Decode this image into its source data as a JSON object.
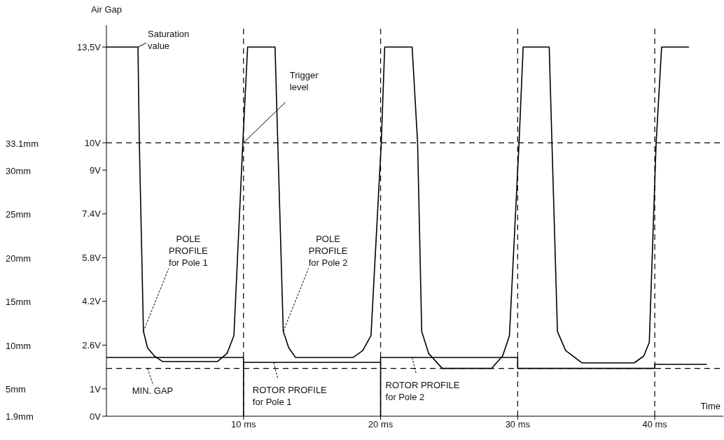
{
  "chart_data": {
    "type": "line",
    "xlabel": "Time",
    "ylabel": "Air Gap",
    "xlim": [
      0,
      45
    ],
    "xticks": [
      {
        "value": 10,
        "label": "10 ms"
      },
      {
        "value": 20,
        "label": "20 ms"
      },
      {
        "value": 30,
        "label": "30 ms"
      },
      {
        "value": 40,
        "label": "40 ms"
      }
    ],
    "ylim": [
      0,
      14.3
    ],
    "yticks": [
      {
        "value": 0,
        "label": "0V"
      },
      {
        "value": 1,
        "label": "1V"
      },
      {
        "value": 2.6,
        "label": "2.6V"
      },
      {
        "value": 4.2,
        "label": "4.2V"
      },
      {
        "value": 5.8,
        "label": "5.8V"
      },
      {
        "value": 7.4,
        "label": "7.4V"
      },
      {
        "value": 9,
        "label": "9V"
      },
      {
        "value": 10,
        "label": "10V"
      },
      {
        "value": 13.5,
        "label": "13,5V"
      }
    ],
    "y2lim": [
      1.9,
      46.69
    ],
    "y2ticks": [
      {
        "value": 1.9,
        "label": "1.9mm"
      },
      {
        "value": 5,
        "label": "5mm"
      },
      {
        "value": 10,
        "label": "10mm"
      },
      {
        "value": 15,
        "label": "15mm"
      },
      {
        "value": 20,
        "label": "20mm"
      },
      {
        "value": 25,
        "label": "25mm"
      },
      {
        "value": 30,
        "label": "30mm"
      },
      {
        "value": 33.1,
        "label": "33.1mm"
      }
    ],
    "grid": false,
    "marker": "none",
    "line_style": "solid",
    "series": [
      {
        "color": "#000000",
        "x": [
          0,
          2.3,
          2.4,
          2.7,
          3.0,
          3.5,
          4.1,
          8.1,
          8.8,
          9.3,
          9.95,
          10.3,
          12.3,
          12.5,
          12.9,
          13.3,
          13.8,
          18.0,
          18.7,
          19.3,
          20.05,
          20.3,
          22.3,
          22.7,
          23.0,
          23.5,
          24.5,
          28.1,
          28.9,
          29.4,
          30.1,
          30.4,
          32.3,
          32.5,
          32.9,
          33.5,
          34.7,
          38.5,
          39.2,
          39.6,
          40.1,
          40.5,
          42.5
        ],
        "values": [
          13.5,
          13.5,
          10,
          3.1,
          2.5,
          2.2,
          2.0,
          2.0,
          2.3,
          2.95,
          10,
          13.5,
          13.5,
          10,
          3.1,
          2.5,
          2.15,
          2.15,
          2.4,
          2.95,
          10,
          13.5,
          13.5,
          10,
          3.1,
          2.3,
          1.75,
          1.75,
          2.2,
          2.95,
          10,
          13.5,
          13.5,
          10,
          3.1,
          2.4,
          1.95,
          1.95,
          2.2,
          2.7,
          10,
          13.5,
          13.5
        ]
      },
      {
        "color": "#000000",
        "x": [
          0,
          10,
          10,
          10,
          20,
          20,
          20,
          30,
          30,
          40,
          40,
          43.8
        ],
        "values": [
          2.15,
          2.15,
          0,
          1.97,
          1.97,
          0,
          2.15,
          2.15,
          1.75,
          1.75,
          1.9,
          1.9
        ]
      }
    ],
    "ref_lines": [
      {
        "axis": "y",
        "value": 10,
        "line_style": "dashed"
      },
      {
        "axis": "y",
        "value": 1.75,
        "line_style": "dashed"
      },
      {
        "axis": "x",
        "value": 10,
        "line_style": "dashed"
      },
      {
        "axis": "x",
        "value": 20,
        "line_style": "dashed"
      },
      {
        "axis": "x",
        "value": 30,
        "line_style": "dashed"
      },
      {
        "axis": "x",
        "value": 40,
        "line_style": "dashed"
      }
    ],
    "annotations": [
      {
        "text": "Saturation value",
        "x": 2.3,
        "y": 13.5
      },
      {
        "text": "Trigger level",
        "x": 10,
        "y": 10
      },
      {
        "text": "POLE PROFILE for Pole 1",
        "x": 2.7,
        "y": 3.1
      },
      {
        "text": "POLE PROFILE for Pole 2",
        "x": 12.9,
        "y": 3.1
      },
      {
        "text": "MIN. GAP",
        "x": 3,
        "y": 1.75
      },
      {
        "text": "ROTOR PROFILE for Pole 1",
        "x": 12.2,
        "y": 1.97
      },
      {
        "text": "ROTOR PROFILE for Pole 2",
        "x": 22.3,
        "y": 2.15
      }
    ]
  }
}
